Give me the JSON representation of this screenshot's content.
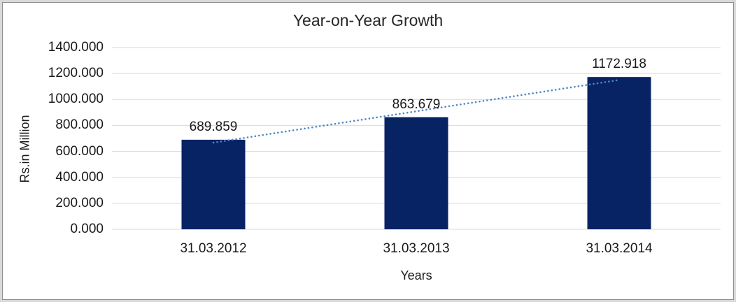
{
  "frame": {
    "outer_color": "#D9D9D9",
    "line_color": "#8F8F8F"
  },
  "chart_data": {
    "type": "bar",
    "title": "Year-on-Year Growth",
    "xlabel": "Years",
    "ylabel": "Rs.in Million",
    "categories": [
      "31.03.2012",
      "31.03.2013",
      "31.03.2014"
    ],
    "values": [
      689.859,
      863.679,
      1172.918
    ],
    "data_labels": [
      "689.859",
      "863.679",
      "1172.918"
    ],
    "y_ticks": [
      "0.000",
      "200.000",
      "400.000",
      "600.000",
      "800.000",
      "1000.000",
      "1200.000",
      "1400.000"
    ],
    "ylim": [
      0,
      1400
    ],
    "grid": true,
    "legend": "none",
    "trendline": {
      "type": "linear",
      "style": "dotted",
      "color": "#4F86C6"
    },
    "colors": {
      "bar": "#082363",
      "gridline": "#D9D9D9",
      "axis_line": "#D9D9D9",
      "text": "#1A1A1A",
      "background": "#FFFFFF"
    }
  }
}
